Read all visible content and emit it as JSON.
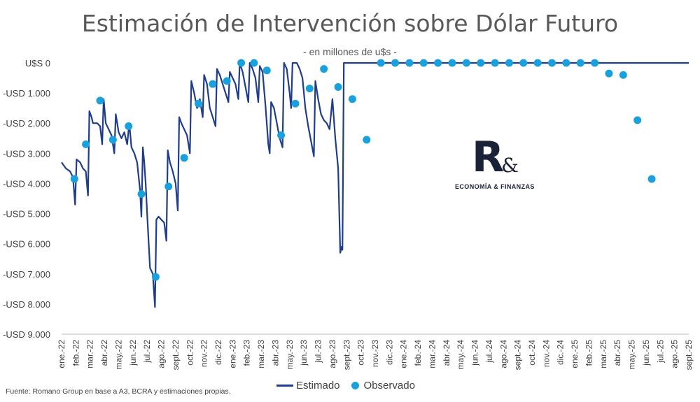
{
  "chart_data": {
    "type": "line",
    "title": "Estimación de Intervención sobre Dólar Futuro",
    "subtitle": "- en millones de u$s -",
    "source": "Fuente: Romano Group en base a A3, BCRA y estimaciones propias.",
    "y_tick_labels": [
      "U$S 0",
      "-USD 1.000",
      "-USD 2.000",
      "-USD 3.000",
      "-USD 4.000",
      "-USD 5.000",
      "-USD 6.000",
      "-USD 7.000",
      "-USD 8.000",
      "-USD 9.000"
    ],
    "y_ticks": [
      0,
      -1000,
      -2000,
      -3000,
      -4000,
      -5000,
      -6000,
      -7000,
      -8000,
      -9000
    ],
    "ylim": [
      -9000,
      0
    ],
    "x_tick_labels": [
      "ene.-22",
      "feb.-22",
      "mar.-22",
      "abr.-22",
      "may.-22",
      "jun.-22",
      "jul.-22",
      "ago.-22",
      "sept.-22",
      "oct.-22",
      "nov.-22",
      "dic.-22",
      "ene.-23",
      "feb.-23",
      "mar.-23",
      "abr.-23",
      "may.-23",
      "jun.-23",
      "jul.-23",
      "ago.-23",
      "sept.-23",
      "oct.-23",
      "nov.-23",
      "dic.-23",
      "ene.-24",
      "feb.-24",
      "mar.-24",
      "abr.-24",
      "may.-24",
      "jun.-24",
      "jul.-24",
      "ago.-24",
      "sept.-24",
      "oct.-24",
      "nov.-24",
      "dic.-24",
      "ene.-25",
      "feb.-25",
      "mar.-25",
      "abr.-25",
      "may.-25",
      "jun.-25",
      "jul.-25",
      "ago.-25",
      "sept.-25"
    ],
    "x_month_range": [
      0,
      44
    ],
    "legend_position": "bottom",
    "grid": false,
    "series": [
      {
        "name": "Estimado",
        "kind": "line",
        "color": "#1f3d8a",
        "points": [
          [
            0,
            -3300
          ],
          [
            0.3,
            -3500
          ],
          [
            0.6,
            -3600
          ],
          [
            0.8,
            -3800
          ],
          [
            0.95,
            -4700
          ],
          [
            1.05,
            -3200
          ],
          [
            1.3,
            -3300
          ],
          [
            1.5,
            -3500
          ],
          [
            1.7,
            -3600
          ],
          [
            1.85,
            -4400
          ],
          [
            1.95,
            -1600
          ],
          [
            2.1,
            -1800
          ],
          [
            2.2,
            -2000
          ],
          [
            2.5,
            -2000
          ],
          [
            2.7,
            -2100
          ],
          [
            2.85,
            -2700
          ],
          [
            2.95,
            -1200
          ],
          [
            3.1,
            -2000
          ],
          [
            3.3,
            -2200
          ],
          [
            3.5,
            -2400
          ],
          [
            3.7,
            -3000
          ],
          [
            3.8,
            -1700
          ],
          [
            4.0,
            -2300
          ],
          [
            4.2,
            -2500
          ],
          [
            4.4,
            -2300
          ],
          [
            4.6,
            -2700
          ],
          [
            4.75,
            -2000
          ],
          [
            4.9,
            -2800
          ],
          [
            5.1,
            -3000
          ],
          [
            5.3,
            -3300
          ],
          [
            5.5,
            -4200
          ],
          [
            5.6,
            -5100
          ],
          [
            5.7,
            -2800
          ],
          [
            5.8,
            -3300
          ],
          [
            5.9,
            -4000
          ],
          [
            6.0,
            -5000
          ],
          [
            6.2,
            -6800
          ],
          [
            6.4,
            -7000
          ],
          [
            6.55,
            -8100
          ],
          [
            6.65,
            -5200
          ],
          [
            6.8,
            -5100
          ],
          [
            7.0,
            -5200
          ],
          [
            7.2,
            -5300
          ],
          [
            7.35,
            -5900
          ],
          [
            7.45,
            -2900
          ],
          [
            7.6,
            -3300
          ],
          [
            7.8,
            -3600
          ],
          [
            8.0,
            -4000
          ],
          [
            8.15,
            -4900
          ],
          [
            8.25,
            -1800
          ],
          [
            8.4,
            -2000
          ],
          [
            8.6,
            -2200
          ],
          [
            8.8,
            -2400
          ],
          [
            9.0,
            -3000
          ],
          [
            9.1,
            -600
          ],
          [
            9.3,
            -1000
          ],
          [
            9.5,
            -1500
          ],
          [
            9.7,
            -1200
          ],
          [
            9.9,
            -1800
          ],
          [
            10.0,
            -400
          ],
          [
            10.2,
            -700
          ],
          [
            10.4,
            -1500
          ],
          [
            10.6,
            -1800
          ],
          [
            10.8,
            -2100
          ],
          [
            10.9,
            -200
          ],
          [
            11.1,
            -400
          ],
          [
            11.3,
            -700
          ],
          [
            11.5,
            -1000
          ],
          [
            11.7,
            -1300
          ],
          [
            11.8,
            -300
          ],
          [
            12.0,
            -500
          ],
          [
            12.2,
            -700
          ],
          [
            12.4,
            -1200
          ],
          [
            12.5,
            0
          ],
          [
            12.7,
            -300
          ],
          [
            12.9,
            -800
          ],
          [
            13.1,
            -1300
          ],
          [
            13.2,
            0
          ],
          [
            13.4,
            -200
          ],
          [
            13.6,
            -500
          ],
          [
            13.8,
            -1300
          ],
          [
            13.9,
            -100
          ],
          [
            14.1,
            -300
          ],
          [
            14.3,
            -1400
          ],
          [
            14.5,
            -2700
          ],
          [
            14.6,
            -3000
          ],
          [
            14.7,
            -1300
          ],
          [
            14.9,
            -1500
          ],
          [
            15.1,
            -2000
          ],
          [
            15.3,
            -2500
          ],
          [
            15.5,
            -2800
          ],
          [
            15.6,
            0
          ],
          [
            15.8,
            -200
          ],
          [
            16.0,
            -1000
          ],
          [
            16.1,
            -1500
          ],
          [
            16.2,
            0
          ],
          [
            16.5,
            0
          ],
          [
            16.7,
            -200
          ],
          [
            16.9,
            -500
          ],
          [
            17.1,
            -1500
          ],
          [
            17.3,
            -2100
          ],
          [
            17.5,
            -2600
          ],
          [
            17.7,
            -3100
          ],
          [
            17.8,
            -600
          ],
          [
            18.0,
            -1200
          ],
          [
            18.2,
            -1700
          ],
          [
            18.4,
            -1900
          ],
          [
            18.6,
            -2000
          ],
          [
            18.8,
            -2200
          ],
          [
            19.0,
            -1200
          ],
          [
            19.2,
            -2500
          ],
          [
            19.4,
            -3500
          ],
          [
            19.55,
            -6300
          ],
          [
            19.65,
            -6100
          ],
          [
            19.7,
            -6200
          ],
          [
            19.8,
            0
          ],
          [
            44,
            0
          ]
        ]
      },
      {
        "name": "Observado",
        "kind": "markers",
        "color": "#1aa0dc",
        "points": [
          [
            0.9,
            -3850
          ],
          [
            1.7,
            -2700
          ],
          [
            2.7,
            -1250
          ],
          [
            3.6,
            -2550
          ],
          [
            4.7,
            -2100
          ],
          [
            5.6,
            -4350
          ],
          [
            6.6,
            -7100
          ],
          [
            7.5,
            -4100
          ],
          [
            8.6,
            -3150
          ],
          [
            9.6,
            -1350
          ],
          [
            10.6,
            -700
          ],
          [
            11.6,
            -600
          ],
          [
            12.6,
            0
          ],
          [
            13.5,
            0
          ],
          [
            14.4,
            -250
          ],
          [
            15.4,
            -2400
          ],
          [
            16.4,
            -1350
          ],
          [
            17.4,
            -850
          ],
          [
            18.4,
            -200
          ],
          [
            19.4,
            -800
          ],
          [
            20.4,
            -1200
          ],
          [
            21.4,
            -2550
          ],
          [
            22.4,
            0
          ],
          [
            23.4,
            0
          ],
          [
            24.4,
            0
          ],
          [
            25.4,
            0
          ],
          [
            26.4,
            0
          ],
          [
            27.4,
            0
          ],
          [
            28.4,
            0
          ],
          [
            29.4,
            0
          ],
          [
            30.4,
            0
          ],
          [
            31.4,
            0
          ],
          [
            32.4,
            0
          ],
          [
            33.4,
            0
          ],
          [
            34.4,
            0
          ],
          [
            35.4,
            0
          ],
          [
            36.4,
            0
          ],
          [
            37.4,
            0
          ],
          [
            38.4,
            -350
          ],
          [
            39.4,
            -400
          ],
          [
            40.4,
            -1900
          ],
          [
            41.4,
            -3850
          ]
        ]
      }
    ]
  },
  "logo": {
    "letter": "R",
    "amp": "&",
    "tagline": "ECONOMÍA & FINANZAS"
  },
  "legend": {
    "estimado": "Estimado",
    "observado": "Observado"
  }
}
